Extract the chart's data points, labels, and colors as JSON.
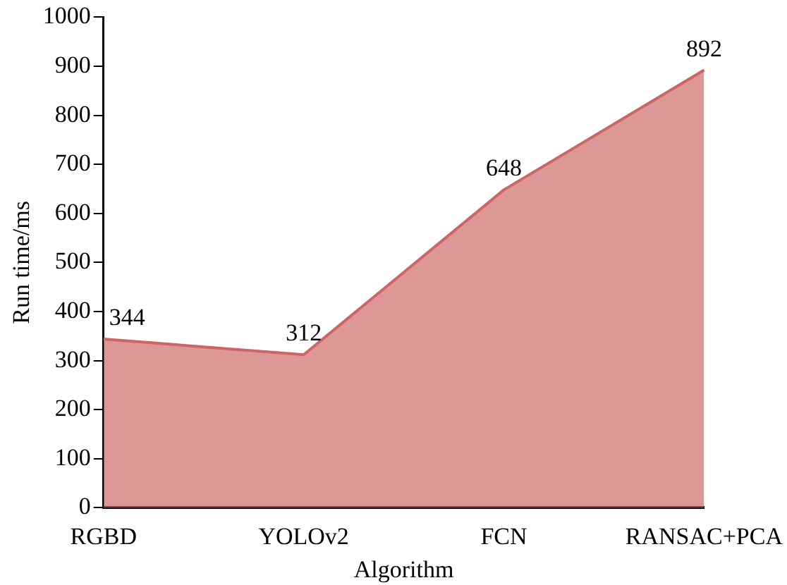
{
  "chart_data": {
    "type": "area",
    "xlabel": "Algorithm",
    "ylabel": "Run time/ms",
    "categories": [
      "RGBD",
      "YOLOv2",
      "FCN",
      "RANSAC+PCA"
    ],
    "series": [
      {
        "color": "#cd6566",
        "values": [
          344,
          312,
          648,
          892
        ]
      }
    ],
    "ylim": [
      0,
      1000
    ],
    "yticks": [
      0,
      100,
      200,
      300,
      400,
      500,
      600,
      700,
      800,
      900,
      1000
    ],
    "data_labels": true,
    "grid": false,
    "legend": false
  }
}
